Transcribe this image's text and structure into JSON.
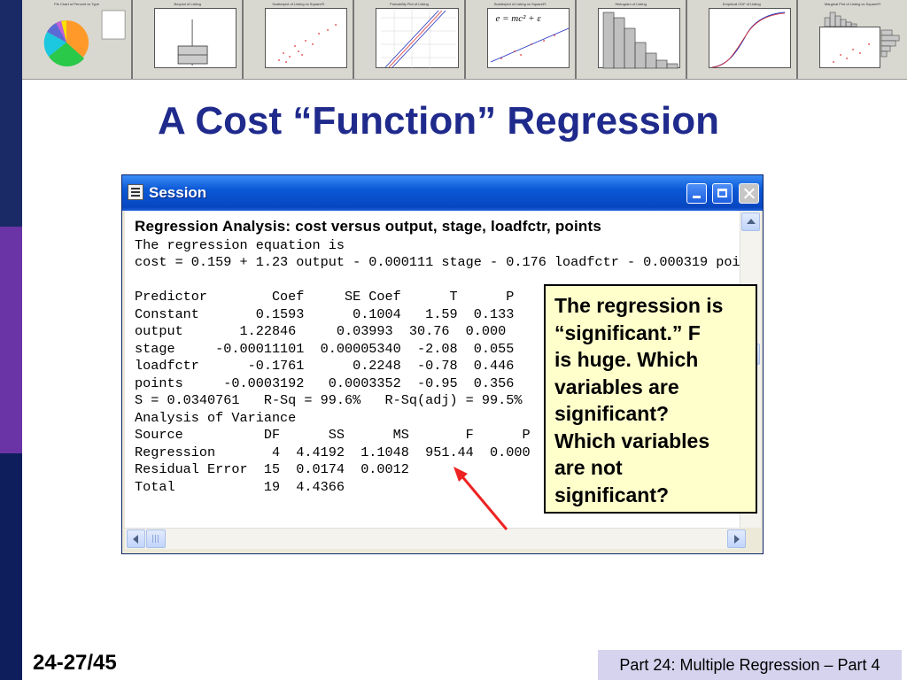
{
  "thumbnails": [
    {
      "title": "Pie Chart of Percent vs Type"
    },
    {
      "title": "Boxplot of Listing"
    },
    {
      "title": "Scatterplot of Listing vs SquareFt"
    },
    {
      "title": "Probability Plot of Listing"
    },
    {
      "title": "Scatterplot of Listing vs SquareFt"
    },
    {
      "title": "Histogram of Listing"
    },
    {
      "title": "Empirical CDF of Listing"
    },
    {
      "title": "Marginal Plot of Listing vs SquareFt"
    }
  ],
  "thumbnail_formula": "e = mc² + ε",
  "slide": {
    "title": "A Cost “Function” Regression",
    "page_number": "24-27/45",
    "footer": "Part 24: Multiple Regression – Part 4"
  },
  "session": {
    "window_title": "Session",
    "header": "Regression Analysis: cost versus output, stage, loadfctr, points",
    "lines": [
      "The regression equation is",
      "cost = 0.159 + 1.23 output - 0.000111 stage - 0.176 loadfctr - 0.000319 poi",
      "",
      "Predictor        Coef     SE Coef      T      P",
      "Constant       0.1593      0.1004   1.59  0.133",
      "output       1.22846     0.03993  30.76  0.000",
      "stage     -0.00011101  0.00005340  -2.08  0.055",
      "loadfctr      -0.1761      0.2248  -0.78  0.446",
      "points     -0.0003192   0.0003352  -0.95  0.356",
      "S = 0.0340761   R-Sq = 99.6%   R-Sq(adj) = 99.5%",
      "Analysis of Variance",
      "Source          DF      SS      MS       F      P",
      "Regression       4  4.4192  1.1048  951.44  0.000",
      "Residual Error  15  0.0174  0.0012",
      "Total           19  4.4366"
    ]
  },
  "callout": {
    "lines": [
      "The regression is",
      "“significant.”  F",
      "is huge.  Which",
      "variables are",
      "significant?",
      "Which variables",
      "are not",
      "significant?"
    ]
  },
  "colors": {
    "title": "#1f2a8c",
    "callout_bg": "#ffffcc",
    "arrow": "#ee2222",
    "footer_bg": "#d6d3ee"
  }
}
